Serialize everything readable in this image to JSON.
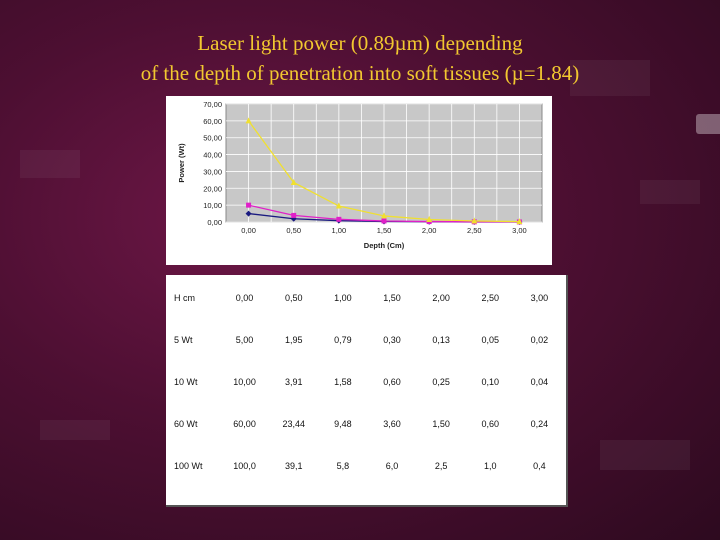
{
  "title": {
    "line1": "Laser light power (0.89µm) depending",
    "line2": "of the depth of penetration into soft tissues (µ=1.84)"
  },
  "chart_data": {
    "type": "line",
    "xlabel": "Depth (Cm)",
    "ylabel": "Power (Wt)",
    "x": [
      0,
      0.5,
      1.0,
      1.5,
      2.0,
      2.5,
      3.0
    ],
    "x_tick_labels": [
      "0,00",
      "0,50",
      "1,00",
      "1,50",
      "2,00",
      "2,50",
      "3,00"
    ],
    "ylim": [
      0,
      70
    ],
    "y_ticks": [
      0,
      10,
      20,
      30,
      40,
      50,
      60,
      70
    ],
    "y_tick_labels": [
      "0,00",
      "10,00",
      "20,00",
      "30,00",
      "40,00",
      "50,00",
      "60,00",
      "70,00"
    ],
    "grid": true,
    "plot_background": "#c8c8c8",
    "series": [
      {
        "values": [
          5.0,
          1.95,
          0.79,
          0.3,
          0.13,
          0.05,
          0.02
        ],
        "color": "#1a1a80",
        "marker": "diamond"
      },
      {
        "values": [
          10.0,
          3.91,
          1.58,
          0.6,
          0.25,
          0.1,
          0.04
        ],
        "color": "#e020c8",
        "marker": "square"
      },
      {
        "values": [
          60.0,
          23.44,
          9.48,
          3.6,
          1.5,
          0.6,
          0.24
        ],
        "color": "#f0e030",
        "marker": "triangle"
      }
    ]
  },
  "table": {
    "rows": [
      [
        "H cm",
        "0,00",
        "0,50",
        "1,00",
        "1,50",
        "2,00",
        "2,50",
        "3,00"
      ],
      [
        "5 Wt",
        "5,00",
        "1,95",
        "0,79",
        "0,30",
        "0,13",
        "0,05",
        "0,02"
      ],
      [
        "10 Wt",
        "10,00",
        "3,91",
        "1,58",
        "0,60",
        "0,25",
        "0,10",
        "0,04"
      ],
      [
        "60 Wt",
        "60,00",
        "23,44",
        "9,48",
        "3,60",
        "1,50",
        "0,60",
        "0,24"
      ],
      [
        "100 Wt",
        "100,0",
        "39,1",
        "5,8",
        "6,0",
        "2,5",
        "1,0",
        "0,4"
      ]
    ]
  }
}
